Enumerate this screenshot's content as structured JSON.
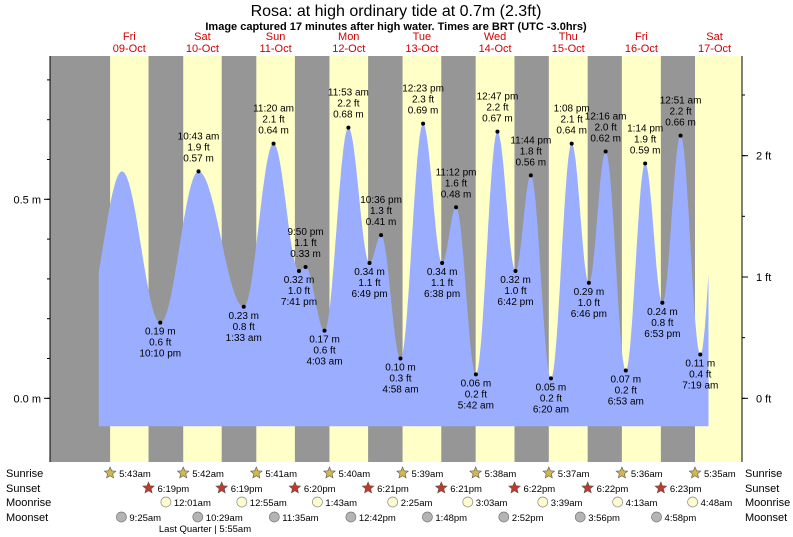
{
  "header": {
    "title": "Rosa: at high  ordinary tide at 0.7m (2.3ft)",
    "subtitle": "Image captured 17 minutes after high water. Times are BRT (UTC -3.0hrs)"
  },
  "chart_data": {
    "type": "area",
    "title": "Rosa: at high  ordinary tide at 0.7m (2.3ft)",
    "y_left_unit": "m",
    "y_right_unit": "ft",
    "y_left_ticks": [
      {
        "value": 0.0,
        "label": "0.0 m"
      },
      {
        "value": 0.5,
        "label": "0.5 m"
      }
    ],
    "y_right_ticks": [
      {
        "value": 0,
        "label": "0 ft"
      },
      {
        "value": 1,
        "label": "1 ft"
      },
      {
        "value": 2,
        "label": "2 ft"
      }
    ],
    "ylim": [
      -0.16,
      0.86
    ],
    "xlim_hours": [
      -14,
      213
    ],
    "day_labels": [
      {
        "name": "Fri",
        "date": "09-Oct"
      },
      {
        "name": "Sat",
        "date": "10-Oct"
      },
      {
        "name": "Sun",
        "date": "11-Oct"
      },
      {
        "name": "Mon",
        "date": "12-Oct"
      },
      {
        "name": "Tue",
        "date": "13-Oct"
      },
      {
        "name": "Wed",
        "date": "14-Oct"
      },
      {
        "name": "Thu",
        "date": "15-Oct"
      },
      {
        "name": "Fri",
        "date": "16-Oct"
      },
      {
        "name": "Sat",
        "date": "17-Oct"
      }
    ],
    "sunrise_hours": [
      5.72,
      29.7,
      53.68,
      77.67,
      101.65,
      125.63,
      149.62,
      173.6,
      197.58
    ],
    "sunset_hours": [
      18.32,
      42.32,
      66.33,
      90.35,
      114.35,
      138.37,
      162.37,
      186.38
    ],
    "tides": [
      {
        "t": 22.17,
        "h": 0.19,
        "type": "low",
        "lines": [
          "0.19 m",
          "0.6 ft",
          "10:10 pm"
        ]
      },
      {
        "t": 34.72,
        "h": 0.57,
        "type": "high",
        "lines": [
          "10:43 am",
          "1.9 ft",
          "0.57 m"
        ]
      },
      {
        "t": 49.55,
        "h": 0.23,
        "type": "low",
        "lines": [
          "0.23 m",
          "0.8 ft",
          "1:33 am"
        ]
      },
      {
        "t": 59.33,
        "h": 0.64,
        "type": "high",
        "lines": [
          "11:20 am",
          "2.1 ft",
          "0.64 m"
        ]
      },
      {
        "t": 67.68,
        "h": 0.32,
        "type": "low",
        "lines": [
          "0.32 m",
          "1.0 ft",
          "7:41 pm"
        ]
      },
      {
        "t": 69.83,
        "h": 0.33,
        "type": "high",
        "lines": [
          "9:50 pm",
          "1.1 ft",
          "0.33 m"
        ]
      },
      {
        "t": 76.05,
        "h": 0.17,
        "type": "low",
        "lines": [
          "0.17 m",
          "0.6 ft",
          "4:03 am"
        ]
      },
      {
        "t": 83.88,
        "h": 0.68,
        "type": "high",
        "lines": [
          "11:53 am",
          "2.2 ft",
          "0.68 m"
        ]
      },
      {
        "t": 90.82,
        "h": 0.34,
        "type": "low",
        "lines": [
          "0.34 m",
          "1.1 ft",
          "6:49 pm"
        ]
      },
      {
        "t": 94.6,
        "h": 0.41,
        "type": "high",
        "lines": [
          "10:36 pm",
          "1.3 ft",
          "0.41 m"
        ]
      },
      {
        "t": 100.97,
        "h": 0.1,
        "type": "low",
        "lines": [
          "0.10 m",
          "0.3 ft",
          "4:58 am"
        ]
      },
      {
        "t": 108.38,
        "h": 0.69,
        "type": "high",
        "lines": [
          "12:23 pm",
          "2.3 ft",
          "0.69 m"
        ]
      },
      {
        "t": 114.63,
        "h": 0.34,
        "type": "low",
        "lines": [
          "0.34 m",
          "1.1 ft",
          "6:38 pm"
        ]
      },
      {
        "t": 119.2,
        "h": 0.48,
        "type": "high",
        "lines": [
          "11:12 pm",
          "1.6 ft",
          "0.48 m"
        ]
      },
      {
        "t": 125.7,
        "h": 0.06,
        "type": "low",
        "lines": [
          "0.06 m",
          "0.2 ft",
          "5:42 am"
        ]
      },
      {
        "t": 132.78,
        "h": 0.67,
        "type": "high",
        "lines": [
          "12:47 pm",
          "2.2 ft",
          "0.67 m"
        ]
      },
      {
        "t": 138.7,
        "h": 0.32,
        "type": "low",
        "lines": [
          "0.32 m",
          "1.0 ft",
          "6:42 pm"
        ]
      },
      {
        "t": 143.73,
        "h": 0.56,
        "type": "high",
        "lines": [
          "11:44 pm",
          "1.8 ft",
          "0.56 m"
        ]
      },
      {
        "t": 150.33,
        "h": 0.05,
        "type": "low",
        "lines": [
          "0.05 m",
          "0.2 ft",
          "6:20 am"
        ]
      },
      {
        "t": 157.13,
        "h": 0.64,
        "type": "high",
        "lines": [
          "1:08 pm",
          "2.1 ft",
          "0.64 m"
        ]
      },
      {
        "t": 162.77,
        "h": 0.29,
        "type": "low",
        "lines": [
          "0.29 m",
          "1.0 ft",
          "6:46 pm"
        ]
      },
      {
        "t": 168.27,
        "h": 0.62,
        "type": "high",
        "lines": [
          "12:16 am",
          "2.0 ft",
          "0.62 m"
        ]
      },
      {
        "t": 174.88,
        "h": 0.07,
        "type": "low",
        "lines": [
          "0.07 m",
          "0.2 ft",
          "6:53 am"
        ]
      },
      {
        "t": 181.23,
        "h": 0.59,
        "type": "high",
        "lines": [
          "1:14 pm",
          "1.9 ft",
          "0.59 m"
        ]
      },
      {
        "t": 186.88,
        "h": 0.24,
        "type": "low",
        "lines": [
          "0.24 m",
          "0.8 ft",
          "6:53 pm"
        ]
      },
      {
        "t": 192.85,
        "h": 0.66,
        "type": "high",
        "lines": [
          "12:51 am",
          "2.2 ft",
          "0.66 m"
        ]
      },
      {
        "t": 199.32,
        "h": 0.11,
        "type": "low",
        "lines": [
          "0.11 m",
          "0.4 ft",
          "7:19 am"
        ]
      }
    ],
    "colors": {
      "day": "#ffffc8",
      "night": "#969696",
      "tide": "#9aadff",
      "day_label": "#d00000"
    }
  },
  "bottom": {
    "labels": {
      "sunrise": "Sunrise",
      "sunset": "Sunset",
      "moonrise": "Moonrise",
      "moonset": "Moonset"
    },
    "sunrise_times": [
      "5:43am",
      "5:42am",
      "5:41am",
      "5:40am",
      "5:39am",
      "5:38am",
      "5:37am",
      "5:36am",
      "5:35am"
    ],
    "sunset_times": [
      "6:19pm",
      "6:19pm",
      "6:20pm",
      "6:21pm",
      "6:21pm",
      "6:22pm",
      "6:22pm",
      "6:23pm"
    ],
    "moonrise_times": [
      "12:01am",
      "12:55am",
      "1:43am",
      "2:25am",
      "3:03am",
      "3:39am",
      "4:13am",
      "4:48am"
    ],
    "moonrise_hours": [
      24.02,
      48.92,
      73.72,
      98.42,
      123.05,
      147.65,
      172.22,
      196.8
    ],
    "moonset_times": [
      "9:25am",
      "10:29am",
      "11:35am",
      "12:42pm",
      "1:48pm",
      "2:52pm",
      "3:56pm",
      "4:58pm"
    ],
    "moonset_hours": [
      9.42,
      34.48,
      59.58,
      84.7,
      109.8,
      134.87,
      159.93,
      184.97
    ],
    "phase_note": "Last Quarter | 5:55am",
    "phase_hour": 29.92,
    "colors": {
      "sun_star": "#d4b84a",
      "sunset_star": "#c0392b",
      "moon_rise": "#fffbd0",
      "moon_set": "#b4b4b4"
    }
  }
}
